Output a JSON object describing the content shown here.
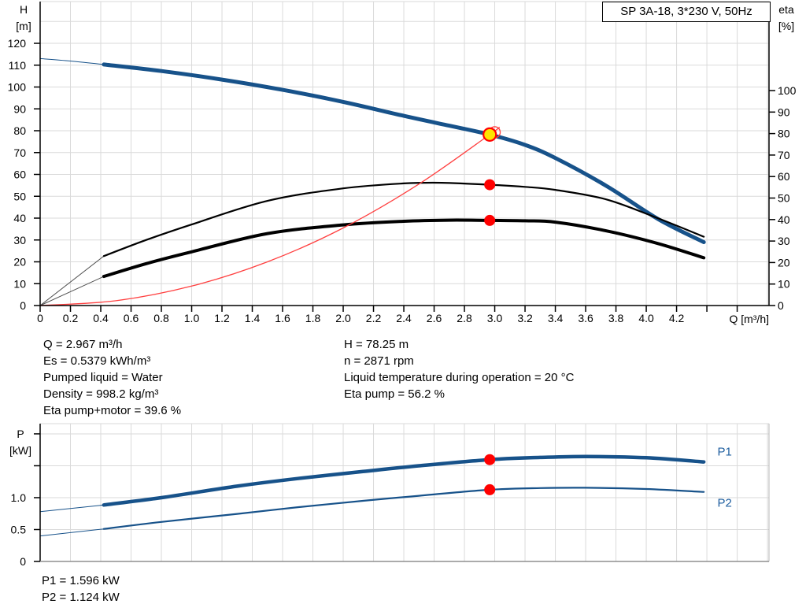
{
  "header": {
    "title_box": "SP 3A-18, 3*230 V, 50Hz"
  },
  "info": {
    "left": [
      "Q = 2.967 m³/h",
      "Es = 0.5379 kWh/m³",
      "Pumped liquid = Water",
      "Density = 998.2 kg/m³",
      "Eta pump+motor = 39.6 %"
    ],
    "right": [
      "H = 78.25 m",
      "n = 2871 rpm",
      "Liquid temperature during operation = 20 °C",
      "Eta pump = 56.2 %"
    ],
    "power": [
      "P1 = 1.596 kW",
      "P2 = 1.124 kW"
    ]
  },
  "colors": {
    "curve_blue": "#17528A",
    "label_blue": "#1F5FA0",
    "marker_red": "#FF0000",
    "system_red": "#FF4040",
    "duty_yellow": "#FFE600",
    "grid": "#DADADA",
    "lead_gray": "#4D4D4D"
  },
  "chart_data": [
    {
      "type": "line",
      "title": "SP 3A-18, 3*230 V, 50Hz",
      "x_axis": {
        "label": "Q [m³/h]",
        "min": 0,
        "max": 4.81,
        "tick_step": 0.2,
        "tick_labels": [
          "0",
          "0.2",
          "0.4",
          "0.6",
          "0.8",
          "1.0",
          "1.2",
          "1.4",
          "1.6",
          "1.8",
          "2.0",
          "2.2",
          "2.4",
          "2.6",
          "2.8",
          "3.0",
          "3.2",
          "3.4",
          "3.6",
          "3.8",
          "4.0",
          "4.2",
          "",
          ""
        ]
      },
      "y_left": {
        "name": "H",
        "unit": "[m]",
        "min": 0,
        "max": 139.1,
        "grid_step": 10,
        "tick_step": 10,
        "tick_labels": [
          "0",
          "10",
          "20",
          "30",
          "40",
          "50",
          "60",
          "70",
          "80",
          "90",
          "100",
          "110",
          "120"
        ]
      },
      "y_right": {
        "name": "eta",
        "unit": "[%]",
        "min": 0,
        "max": 141.4,
        "tick_step": 10,
        "tick_labels": [
          "0",
          "10",
          "20",
          "30",
          "40",
          "50",
          "60",
          "70",
          "80",
          "90",
          "100"
        ]
      },
      "series": [
        {
          "name": "pump-curve-lead",
          "scale": "y_left",
          "color": "#17528A",
          "width": 1,
          "points": [
            [
              0,
              113
            ],
            [
              0.2,
              111.9
            ],
            [
              0.42,
              110.3
            ]
          ]
        },
        {
          "name": "pump-curve",
          "scale": "y_left",
          "color": "#17528A",
          "width": 5,
          "points": [
            [
              0.42,
              110.3
            ],
            [
              0.8,
              107.3
            ],
            [
              1.2,
              103.4
            ],
            [
              1.6,
              98.7
            ],
            [
              2.0,
              93.2
            ],
            [
              2.4,
              86.8
            ],
            [
              2.7,
              82.3
            ],
            [
              2.967,
              78.25
            ],
            [
              3.2,
              73.5
            ],
            [
              3.4,
              67.5
            ],
            [
              3.74,
              54.6
            ],
            [
              4.08,
              39.5
            ],
            [
              4.38,
              29
            ]
          ]
        },
        {
          "name": "eta-pump-lead",
          "scale": "y_right",
          "color": "#4D4D4D",
          "width": 1,
          "points": [
            [
              0,
              0
            ],
            [
              0.42,
              23
            ]
          ]
        },
        {
          "name": "eta-pump",
          "scale": "y_right",
          "color": "#000000",
          "width": 2.2,
          "points": [
            [
              0.42,
              23
            ],
            [
              0.7,
              30.5
            ],
            [
              1.0,
              37.7
            ],
            [
              1.5,
              48.7
            ],
            [
              2.0,
              54.5
            ],
            [
              2.4,
              56.8
            ],
            [
              2.65,
              57.1
            ],
            [
              2.967,
              56.2
            ],
            [
              3.2,
              55.2
            ],
            [
              3.4,
              53.8
            ],
            [
              3.74,
              49.3
            ],
            [
              4.08,
              40.5
            ],
            [
              4.38,
              32
            ]
          ]
        },
        {
          "name": "eta-pump-motor-lead",
          "scale": "y_right",
          "color": "#4D4D4D",
          "width": 1,
          "points": [
            [
              0,
              0
            ],
            [
              0.42,
              13.5
            ]
          ]
        },
        {
          "name": "eta-pump-motor",
          "scale": "y_right",
          "color": "#000000",
          "width": 4,
          "points": [
            [
              0.42,
              13.5
            ],
            [
              0.7,
              19.5
            ],
            [
              1.0,
              25
            ],
            [
              1.5,
              33.5
            ],
            [
              2.0,
              37.5
            ],
            [
              2.4,
              39.2
            ],
            [
              2.7,
              39.7
            ],
            [
              2.967,
              39.6
            ],
            [
              3.2,
              39.4
            ],
            [
              3.4,
              38.8
            ],
            [
              3.74,
              34.7
            ],
            [
              4.08,
              28.8
            ],
            [
              4.38,
              22.2
            ]
          ]
        },
        {
          "name": "system-curve",
          "scale": "y_left",
          "color": "#FF4040",
          "width": 1.3,
          "points": [
            [
              0,
              0
            ],
            [
              0.5,
              2.2
            ],
            [
              1.0,
              8.9
            ],
            [
              1.5,
              20.0
            ],
            [
              2.0,
              35.5
            ],
            [
              2.5,
              55.6
            ],
            [
              2.967,
              78.25
            ],
            [
              3.03,
              81.5
            ]
          ]
        }
      ],
      "markers": [
        {
          "name": "target-duty-point",
          "q": 3.0,
          "v": 79.3,
          "scale": "y_left",
          "r": 7,
          "fill": "none",
          "stroke": "#FF4040",
          "sw": 1.4
        },
        {
          "name": "duty-point",
          "q": 2.967,
          "v": 78.25,
          "scale": "y_left",
          "r": 8,
          "fill": "#FFE600",
          "stroke": "#FF0000",
          "sw": 2.2
        },
        {
          "name": "eta-pump-point",
          "q": 2.967,
          "v": 56.2,
          "scale": "y_right",
          "r": 7,
          "fill": "#FF0000",
          "stroke": "none",
          "sw": 0
        },
        {
          "name": "eta-pump-motor-point",
          "q": 2.967,
          "v": 39.6,
          "scale": "y_right",
          "r": 7,
          "fill": "#FF0000",
          "stroke": "none",
          "sw": 0
        }
      ],
      "series_labels": []
    },
    {
      "type": "line",
      "x_axis": {
        "label": "",
        "min": 0,
        "max": 4.81,
        "tick_step": 0.2,
        "tick_labels": []
      },
      "y_left": {
        "name": "P",
        "unit": "[kW]",
        "min": 0,
        "max": 2.16,
        "grid_step": 0.5,
        "tick_step": 0.5,
        "tick_labels": [
          "0",
          "0.5",
          "1.0",
          "",
          ""
        ]
      },
      "series": [
        {
          "name": "p1-lead",
          "scale": "y_left",
          "color": "#17528A",
          "width": 1,
          "points": [
            [
              0,
              0.78
            ],
            [
              0.42,
              0.885
            ]
          ]
        },
        {
          "name": "p1-curve",
          "scale": "y_left",
          "color": "#17528A",
          "width": 4.5,
          "points": [
            [
              0.42,
              0.885
            ],
            [
              0.8,
              1.0
            ],
            [
              1.3,
              1.18
            ],
            [
              1.7,
              1.3
            ],
            [
              2.13,
              1.41
            ],
            [
              2.5,
              1.5
            ],
            [
              2.967,
              1.596
            ],
            [
              3.3,
              1.63
            ],
            [
              3.6,
              1.645
            ],
            [
              4.0,
              1.625
            ],
            [
              4.38,
              1.56
            ]
          ]
        },
        {
          "name": "p2-lead",
          "scale": "y_left",
          "color": "#17528A",
          "width": 1,
          "points": [
            [
              0,
              0.4
            ],
            [
              0.42,
              0.51
            ]
          ]
        },
        {
          "name": "p2-curve",
          "scale": "y_left",
          "color": "#17528A",
          "width": 2.2,
          "points": [
            [
              0.42,
              0.51
            ],
            [
              0.8,
              0.62
            ],
            [
              1.3,
              0.745
            ],
            [
              1.7,
              0.85
            ],
            [
              2.13,
              0.95
            ],
            [
              2.5,
              1.03
            ],
            [
              2.967,
              1.124
            ],
            [
              3.3,
              1.15
            ],
            [
              3.6,
              1.155
            ],
            [
              4.0,
              1.135
            ],
            [
              4.38,
              1.09
            ]
          ]
        }
      ],
      "markers": [
        {
          "name": "p1-point",
          "q": 2.967,
          "v": 1.596,
          "scale": "y_left",
          "r": 7,
          "fill": "#FF0000",
          "stroke": "none",
          "sw": 0
        },
        {
          "name": "p2-point",
          "q": 2.967,
          "v": 1.124,
          "scale": "y_left",
          "r": 7,
          "fill": "#FF0000",
          "stroke": "none",
          "sw": 0
        }
      ],
      "series_labels": [
        {
          "text": "P1",
          "q": 4.47,
          "v": 1.72
        },
        {
          "text": "P2",
          "q": 4.47,
          "v": 0.92
        }
      ]
    }
  ]
}
